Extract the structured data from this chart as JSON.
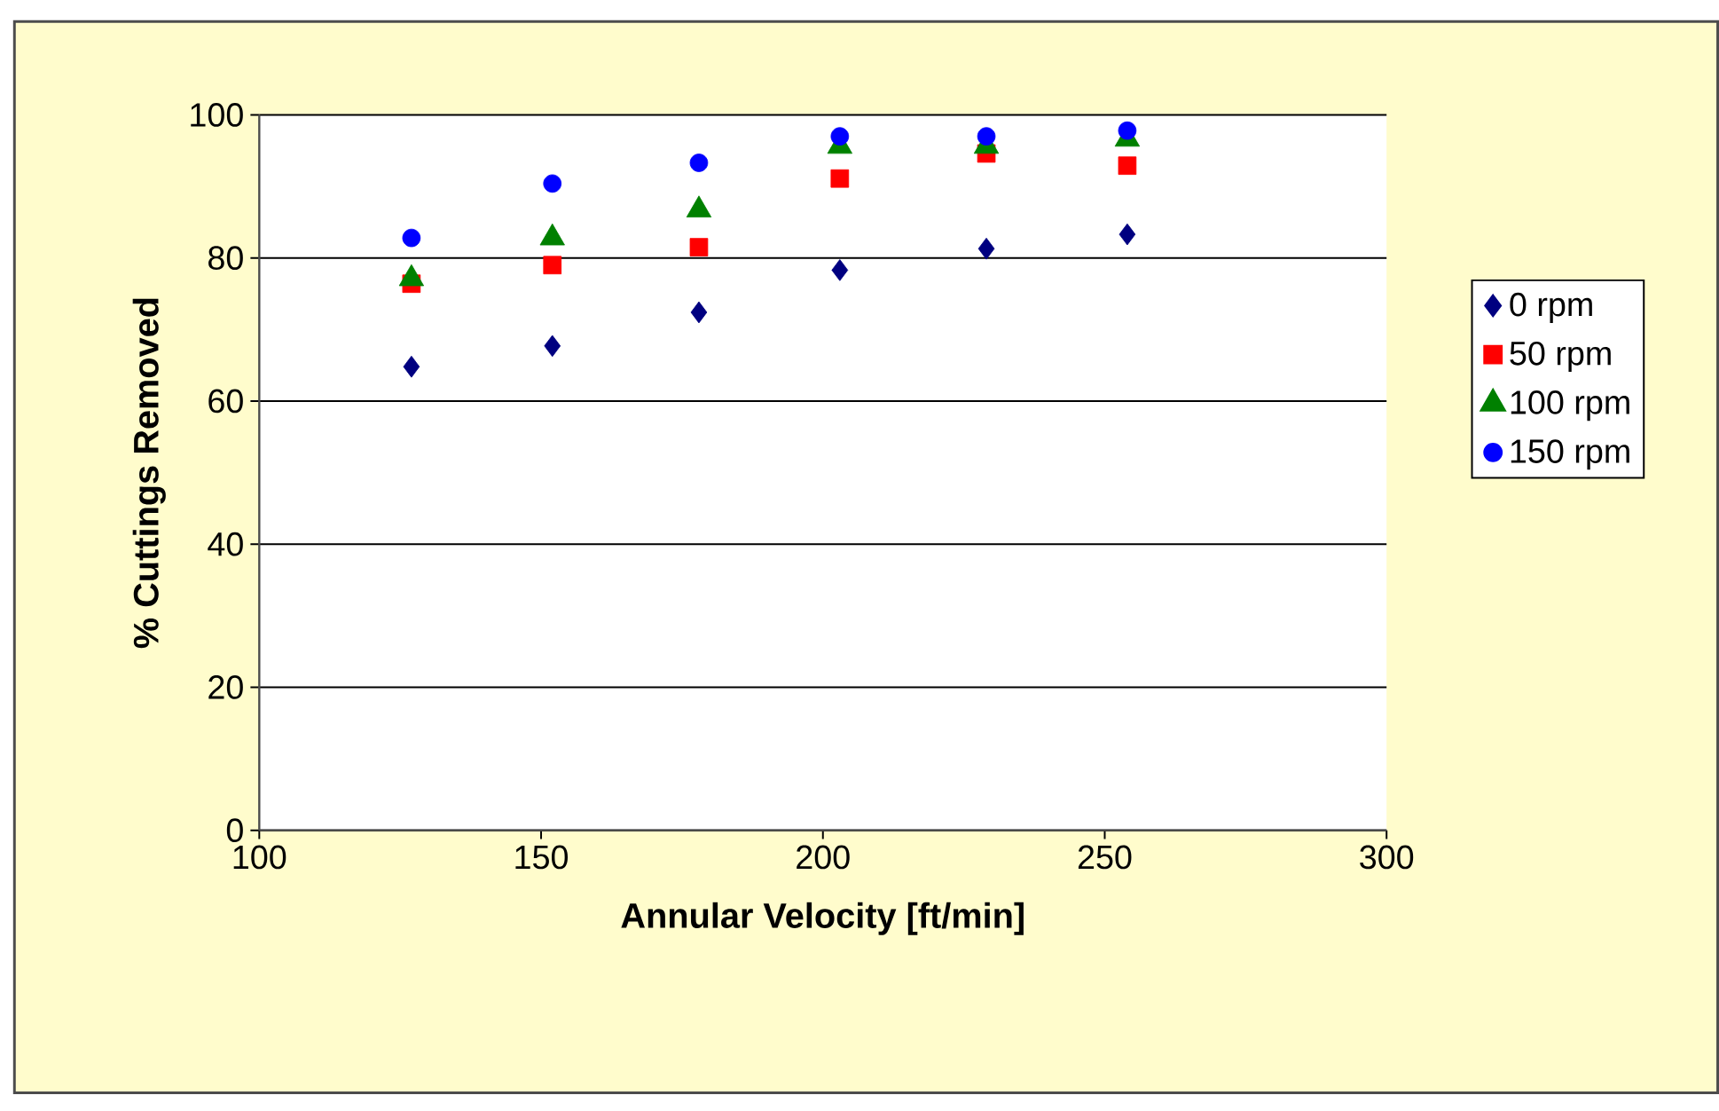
{
  "chart_data": {
    "type": "scatter",
    "xlabel": "Annular Velocity [ft/min]",
    "ylabel": "% Cuttings Removed",
    "xlim": [
      100,
      300
    ],
    "xticks": [
      100,
      150,
      200,
      250,
      300
    ],
    "ylim": [
      0,
      100
    ],
    "yticks": [
      0,
      20,
      40,
      60,
      80,
      100
    ],
    "grid": "y",
    "legend": "right",
    "series": [
      {
        "name": "0 rpm",
        "color": "#000080",
        "marker": "diamond",
        "x": [
          127,
          152,
          178,
          203,
          229,
          254
        ],
        "values": [
          64.8,
          67.7,
          72.4,
          78.3,
          81.3,
          83.3
        ]
      },
      {
        "name": "50 rpm",
        "color": "#ff0000",
        "marker": "square",
        "x": [
          127,
          152,
          178,
          203,
          229,
          254
        ],
        "values": [
          76.4,
          79,
          81.5,
          91.1,
          94.6,
          92.9
        ]
      },
      {
        "name": "100 rpm",
        "color": "#008000",
        "marker": "triangle",
        "x": [
          127,
          152,
          178,
          203,
          229,
          254
        ],
        "values": [
          77.1,
          82.8,
          86.7,
          95.6,
          95.6,
          96.6
        ]
      },
      {
        "name": "150 rpm",
        "color": "#0000ff",
        "marker": "circle",
        "x": [
          127,
          152,
          178,
          203,
          229,
          254
        ],
        "values": [
          82.8,
          90.4,
          93.3,
          97,
          97,
          97.8
        ]
      }
    ]
  }
}
